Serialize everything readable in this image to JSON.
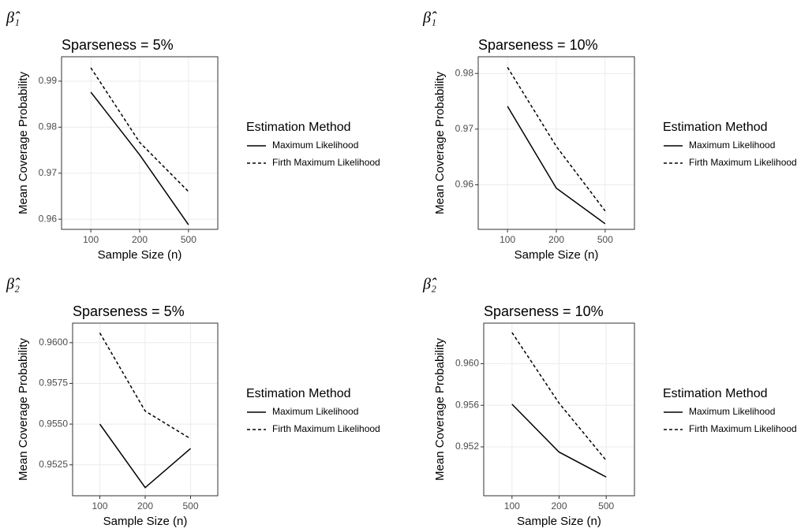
{
  "chart_data": [
    {
      "type": "line",
      "panel_label": "β̂₁",
      "title": "Sparseness = 5%",
      "x_label": "Sample Size (n)",
      "y_label": "Mean Coverage Probability",
      "categories": [
        "100",
        "200",
        "500"
      ],
      "legend_title": "Estimation Method",
      "series": [
        {
          "name": "Maximum Likelihood",
          "color": "#000000",
          "dash": "solid",
          "values": [
            0.9876,
            0.974,
            0.9588
          ]
        },
        {
          "name": "Firth Maximum Likelihood",
          "color": "#000000",
          "dash": "dashed",
          "values": [
            0.9929,
            0.9767,
            0.966
          ]
        }
      ],
      "ylim": [
        0.9578,
        0.9953
      ],
      "yticks": [
        0.96,
        0.97,
        0.98,
        0.99
      ],
      "grid": true
    },
    {
      "type": "line",
      "panel_label": "β̂₁",
      "title": "Sparseness = 10%",
      "x_label": "Sample Size (n)",
      "y_label": "Mean Coverage Probability",
      "categories": [
        "100",
        "200",
        "500"
      ],
      "legend_title": "Estimation Method",
      "series": [
        {
          "name": "Maximum Likelihood",
          "color": "#000000",
          "dash": "solid",
          "values": [
            0.9741,
            0.9594,
            0.953
          ]
        },
        {
          "name": "Firth Maximum Likelihood",
          "color": "#000000",
          "dash": "dashed",
          "values": [
            0.9811,
            0.9669,
            0.9553
          ]
        }
      ],
      "ylim": [
        0.952,
        0.983
      ],
      "yticks": [
        0.96,
        0.97,
        0.98
      ],
      "grid": true
    },
    {
      "type": "line",
      "panel_label": "β̂₂",
      "title": "Sparseness = 5%",
      "x_label": "Sample Size (n)",
      "y_label": "Mean Coverage Probability",
      "categories": [
        "100",
        "200",
        "500"
      ],
      "legend_title": "Estimation Method",
      "series": [
        {
          "name": "Maximum Likelihood",
          "color": "#000000",
          "dash": "solid",
          "values": [
            0.955,
            0.9511,
            0.9535
          ]
        },
        {
          "name": "Firth Maximum Likelihood",
          "color": "#000000",
          "dash": "dashed",
          "values": [
            0.9606,
            0.9558,
            0.9541
          ]
        }
      ],
      "ylim": [
        0.9506,
        0.9612
      ],
      "yticks": [
        {
          "value": 0.9525,
          "label": "0.9525"
        },
        {
          "value": 0.955,
          "label": "0.9550"
        },
        {
          "value": 0.9575,
          "label": "0.9575"
        },
        {
          "value": 0.96,
          "label": "0.9600"
        }
      ],
      "grid": true
    },
    {
      "type": "line",
      "panel_label": "β̂₂",
      "title": "Sparseness = 10%",
      "x_label": "Sample Size (n)",
      "y_label": "Mean Coverage Probability",
      "categories": [
        "100",
        "200",
        "500"
      ],
      "legend_title": "Estimation Method",
      "series": [
        {
          "name": "Maximum Likelihood",
          "color": "#000000",
          "dash": "solid",
          "values": [
            0.9561,
            0.9515,
            0.9491
          ]
        },
        {
          "name": "Firth Maximum Likelihood",
          "color": "#000000",
          "dash": "dashed",
          "values": [
            0.963,
            0.9562,
            0.9507
          ]
        }
      ],
      "ylim": [
        0.9473,
        0.9639
      ],
      "yticks": [
        {
          "value": 0.952,
          "label": "0.952"
        },
        {
          "value": 0.956,
          "label": "0.956"
        },
        {
          "value": 0.96,
          "label": "0.960"
        }
      ],
      "grid": true
    }
  ]
}
